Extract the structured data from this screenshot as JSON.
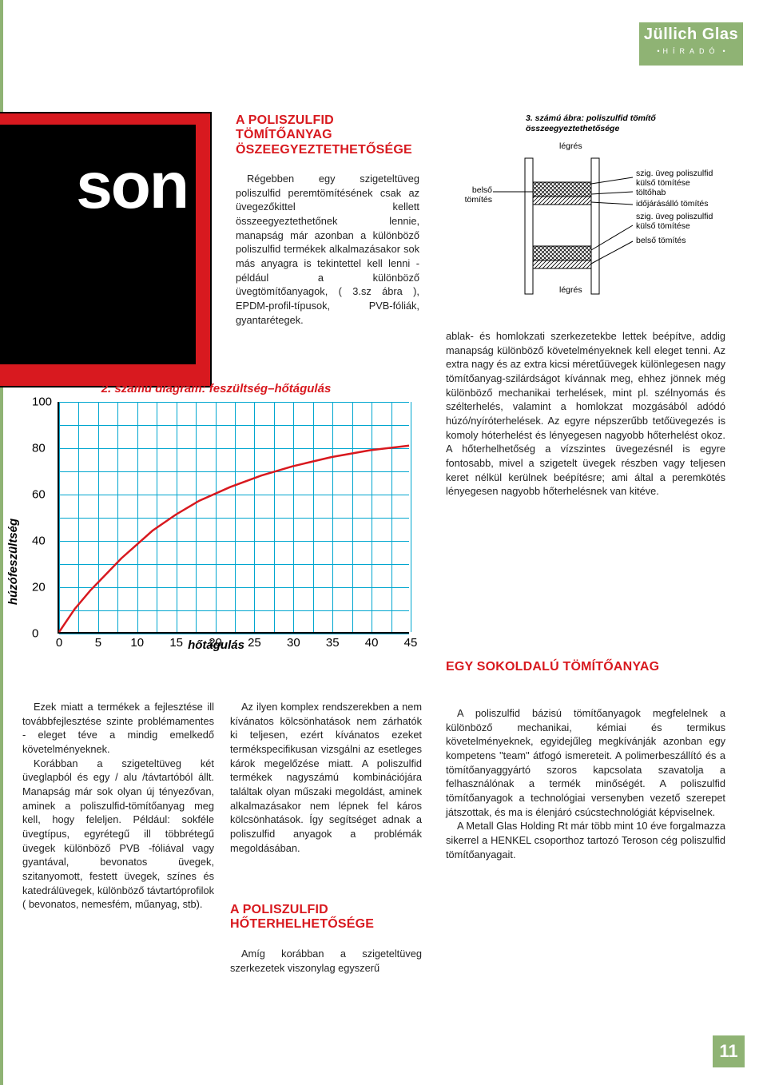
{
  "logo": {
    "line1": "Jüllich Glas",
    "line2": "HÍRADÓ"
  },
  "teroson": "son",
  "section1": {
    "title": "A POLISZULFID TÖMÍTŐANYAG ÖSZEEGYEZTETHETŐSÉGE",
    "p1": "Régebben egy szigeteltüveg poliszulfid peremtömítésének csak az üvegezőkittel kellett összeegyeztethetőnek lennie, manapság már azonban a különböző poliszulfid termékek alkalmazásakor sok más anyagra is tekintettel kell lenni - például a különböző üvegtömítőanyagok, ( 3.sz ábra ), EPDM-profil-típusok, PVB-fóliák, gyantarétegek."
  },
  "chart": {
    "type": "line",
    "title": "2. számú diagram: feszültség–hőtágulás",
    "ylabel": "húzófeszültség",
    "xlabel": "hőtágulás",
    "xlim": [
      0,
      45
    ],
    "ylim": [
      0,
      100
    ],
    "xticks": [
      0,
      5,
      10,
      15,
      20,
      25,
      30,
      35,
      40,
      45
    ],
    "yticks": [
      0,
      20,
      40,
      60,
      80,
      100
    ],
    "grid_minor_x_step": 2.5,
    "grid_minor_y_step": 10,
    "line_color": "#d8191f",
    "line_width": 2.5,
    "grid_color": "#00a6cf",
    "points": [
      [
        0,
        0
      ],
      [
        2,
        10
      ],
      [
        4,
        18
      ],
      [
        6,
        25
      ],
      [
        8,
        32
      ],
      [
        10,
        38
      ],
      [
        12,
        44
      ],
      [
        15,
        51
      ],
      [
        18,
        57
      ],
      [
        22,
        63
      ],
      [
        26,
        68
      ],
      [
        30,
        72
      ],
      [
        35,
        76
      ],
      [
        40,
        79
      ],
      [
        45,
        81
      ]
    ]
  },
  "col1": {
    "p1": "Ezek miatt a termékek a fejlesztése ill továbbfejlesztése szinte problémamentes - eleget téve a mindig emelkedő követelményeknek.",
    "p2": "Korábban a szigeteltüveg két üveglapból és egy / alu /távtartóból állt. Manapság már sok olyan új tényezővan, aminek a poliszulfid-tömítőanyag meg kell, hogy feleljen. Például: sokféle üvegtípus, egyrétegű ill többrétegű üvegek különböző PVB -fóliával vagy gyantával, bevonatos üvegek, szitanyomott, festett üvegek, színes és katedrálüvegek, különböző távtartóprofilok ( bevonatos, nemesfém, műanyag, stb)."
  },
  "col2": {
    "p1": "Az ilyen komplex rendszerekben a nem kívánatos kölcsönhatások nem zárhatók ki teljesen, ezért kívánatos ezeket termékspecifikusan vizsgálni az esetleges károk megelőzése miatt. A poliszulfid termékek nagyszámú kombinációjára találtak olyan műszaki megoldást, aminek alkalmazásakor nem lépnek fel káros kölcsönhatások. Így segítséget adnak a poliszulfid anyagok a problémák megoldásában."
  },
  "section2": {
    "title": "A POLISZULFID HŐTERHELHETŐSÉGE",
    "p1": "Amíg korábban a szigeteltüveg szerkezetek viszonylag egyszerű"
  },
  "fig3": {
    "caption": "3. számú ábra: poliszulfid tömítő összeegyeztethetősége",
    "labels": {
      "legres_top": "légrés",
      "legres_bot": "légrés",
      "belso_tomites": "belső tömítés",
      "r1": "szig. üveg poliszulfid külső tömítése",
      "r2": "töltőhab",
      "r3": "időjárásálló tömítés",
      "r4": "szig. üveg poliszulfid külső tömítése",
      "r5": "belső tömítés"
    }
  },
  "col3": {
    "p1": "ablak- és homlokzati szerkezetekbe lettek beépítve, addig manapság különböző követelményeknek kell eleget tenni. Az extra nagy és az extra kicsi méretűüvegek különlegesen nagy tömítőanyag-szilárdságot kívánnak meg, ehhez jönnek még különböző mechanikai terhelések, mint pl. szélnyomás és szélterhelés, valamint a homlokzat mozgásából adódó húzó/nyíróterhelések. Az egyre népszerűbb tetőüvegezés is komoly hóterhelést és lényegesen nagyobb hőterhelést okoz. A hőterhelhetőség a vízszintes üvegezésnél is egyre fontosabb, mivel a szigetelt üvegek részben vagy teljesen keret nélkül kerülnek beépítésre; ami által a peremkötés lényegesen nagyobb hőterhelésnek van kitéve."
  },
  "section3": {
    "title": "EGY SOKOLDALÚ TÖMÍTŐANYAG",
    "p1": "A poliszulfid bázisú tömítőanyagok megfelelnek a különböző mechanikai, kémiai és termikus követelményeknek, egyidejűleg megkívánják azonban egy kompetens \"team\" átfogó ismereteit. A polimerbeszállító és a tömítőanyaggyártó szoros kapcsolata szavatolja a felhasználónak a termék minőségét. A poliszulfid tömítőanyagok a technológiai versenyben vezető szerepet játszottak, és ma is élenjáró csúcstechnológiát képviselnek.",
    "p2": "A Metall Glas Holding Rt már több mint 10 éve forgalmazza sikerrel a HENKEL csoporthoz tartozó Teroson cég poliszulfid tömítőanyagait."
  },
  "pagenum": "11"
}
